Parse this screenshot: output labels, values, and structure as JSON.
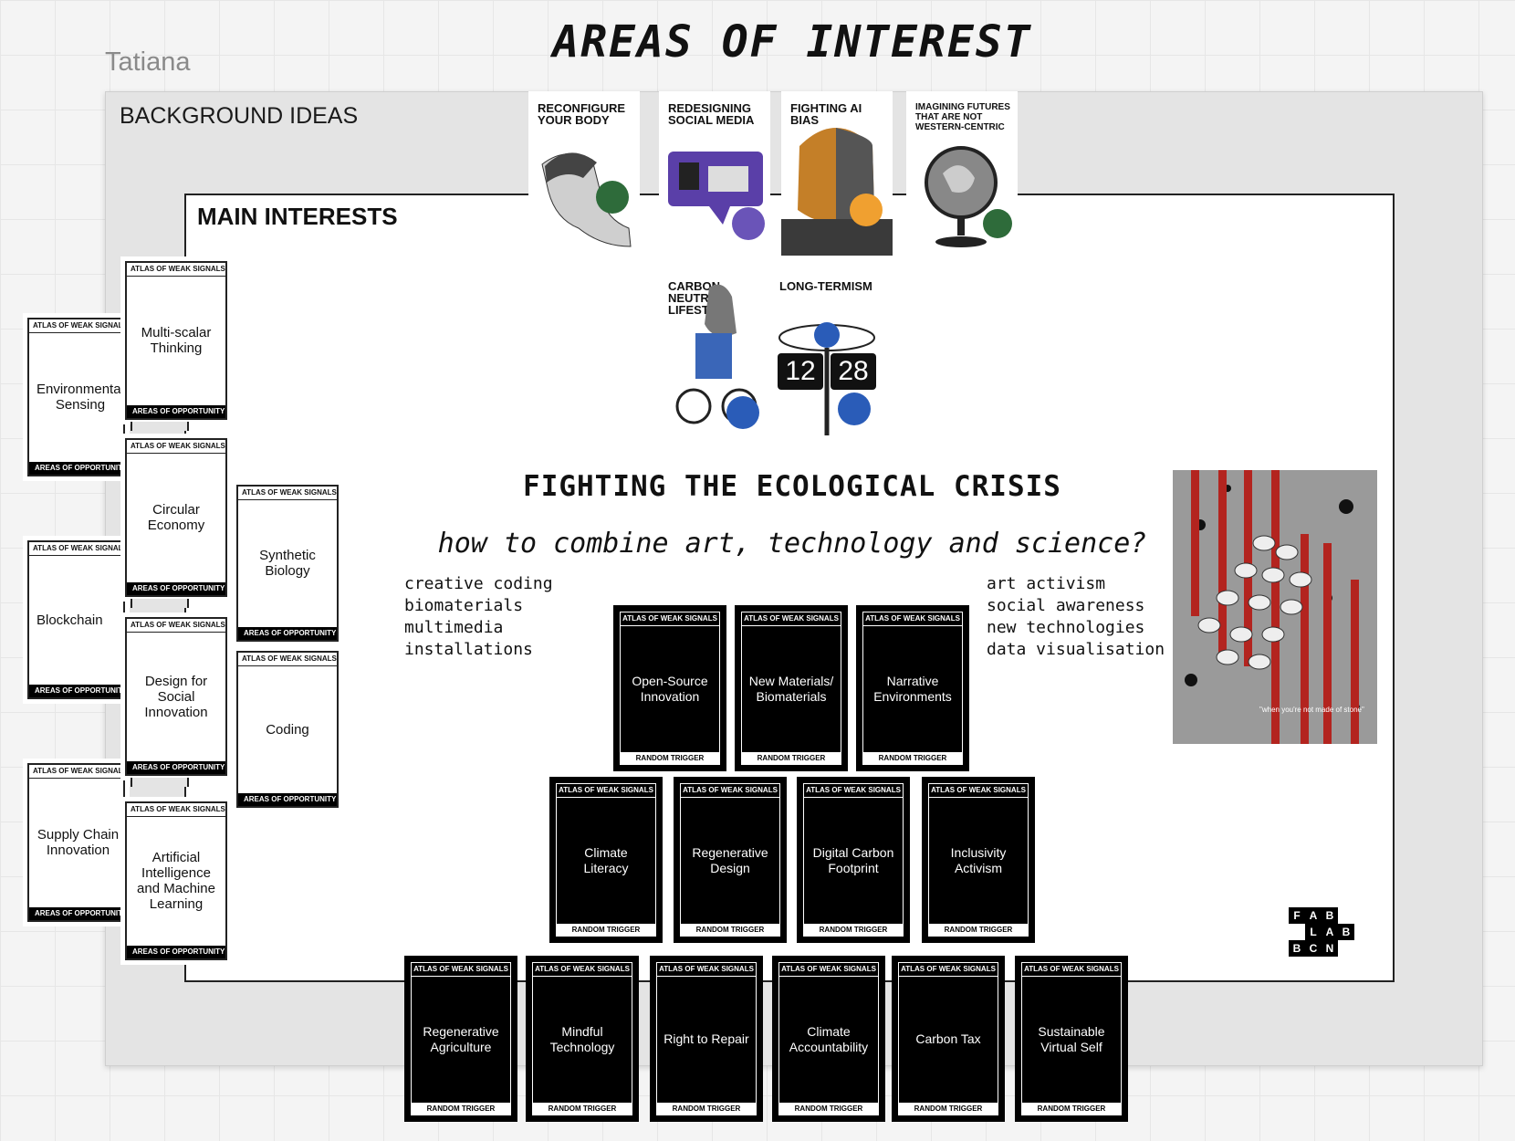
{
  "user_label": "Tatiana",
  "page_title": "AREAS OF INTEREST",
  "background_frame": {
    "title": "BACKGROUND IDEAS"
  },
  "main_frame": {
    "title": "MAIN INTERESTS"
  },
  "headline": "FIGHTING THE ECOLOGICAL CRISIS",
  "question": "how to combine art, technology and science?",
  "keywords_left": [
    "creative coding",
    "biomaterials",
    "multimedia",
    "installations"
  ],
  "keywords_right": [
    "art activism",
    "social awareness",
    "new technologies",
    "data visualisation"
  ],
  "posters": [
    {
      "title": "RECONFIGURE YOUR BODY",
      "accent": "#2e6b3a"
    },
    {
      "title": "REDESIGNING SOCIAL MEDIA",
      "accent": "#6a54b8"
    },
    {
      "title": "FIGHTING AI BIAS",
      "accent": "#f0a030"
    },
    {
      "title": "IMAGINING FUTURES THAT ARE NOT WESTERN-CENTRIC",
      "accent": "#2e6b3a"
    },
    {
      "title": "CARBON NEUTRAL LIFESTYLE",
      "accent": "#2a5cb8"
    },
    {
      "title": "LONG-TERMISM",
      "accent": "#2a5cb8",
      "clock_hours": "12",
      "clock_minutes": "28"
    }
  ],
  "signal_cards": {
    "header": "ATLAS OF WEAK SIGNALS",
    "opportunity_footer": "AREAS OF OPPORTUNITY",
    "trigger_footer": "RANDOM TRIGGER",
    "left_column": [
      "Environmental Sensing",
      "Blockchain",
      "Supply Chain Innovation"
    ],
    "middle_column": [
      "Multi-scalar Thinking",
      "Circular Economy",
      "Design for Social Innovation",
      "Artificial Intelligence and Machine Learning"
    ],
    "right_column": [
      "Synthetic Biology",
      "Coding"
    ],
    "trigger_row_1": [
      "Open-Source Innovation",
      "New Materials/ Biomaterials",
      "Narrative Environments"
    ],
    "trigger_row_2": [
      "Climate Literacy",
      "Regenerative Design",
      "Digital Carbon Footprint",
      "Inclusivity Activism"
    ],
    "trigger_row_3": [
      "Regenerative Agriculture",
      "Mindful Technology",
      "Right to Repair",
      "Climate Accountability",
      "Carbon Tax",
      "Sustainable Virtual Self"
    ]
  },
  "turtle_poster": {
    "caption": "\"when you're not made of stone\"",
    "stripe_color": "#b3241f"
  },
  "logo": {
    "letters": [
      "F",
      "A",
      "B",
      "L",
      "A",
      "B",
      "B",
      "C",
      "N"
    ]
  }
}
